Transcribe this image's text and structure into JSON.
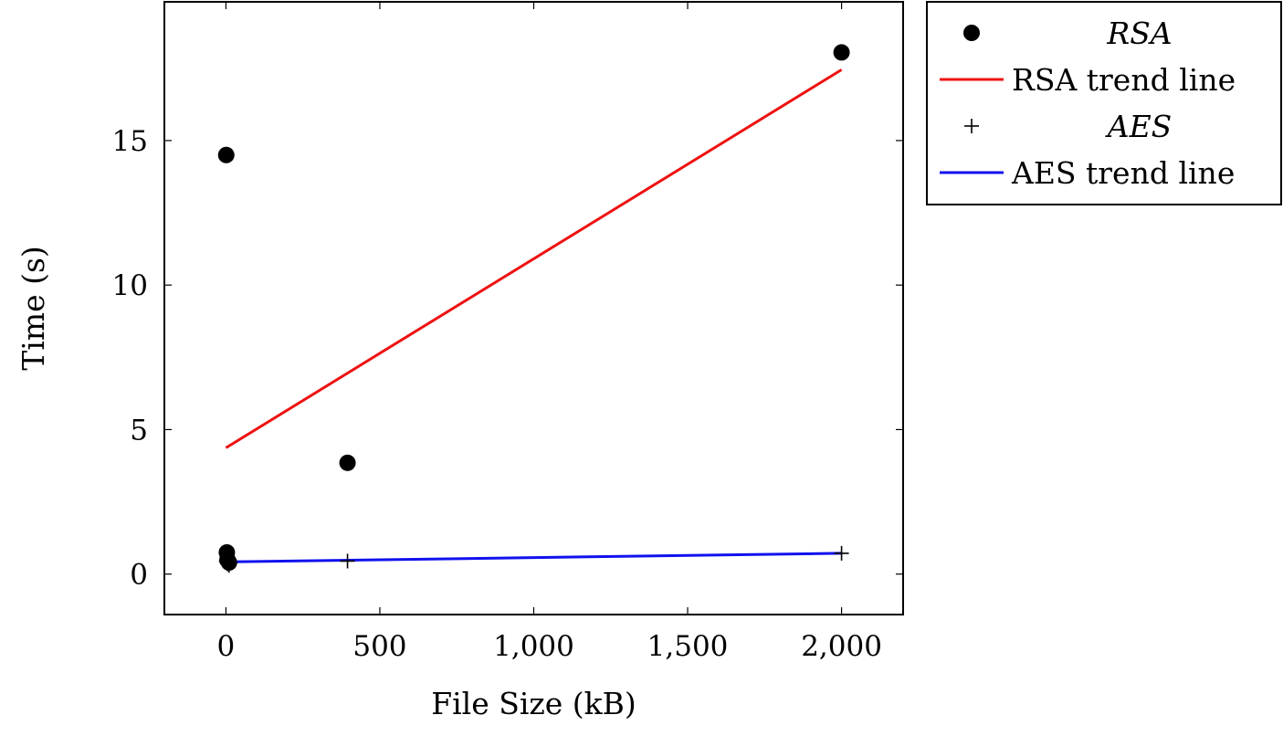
{
  "chart_data": {
    "type": "scatter",
    "xlabel": "File Size (kB)",
    "ylabel": "Time (s)",
    "xlim": [
      -200,
      2200
    ],
    "ylim": [
      -1.4,
      19.8
    ],
    "x_ticks": [
      0,
      500,
      1000,
      1500,
      2000
    ],
    "x_tick_labels": [
      "0",
      "500",
      "1,000",
      "1,500",
      "2,000"
    ],
    "y_ticks": [
      0,
      5,
      10,
      15
    ],
    "y_tick_labels": [
      "0",
      "5",
      "10",
      "15"
    ],
    "grid": false,
    "legend_position": "outside-top-right",
    "series": [
      {
        "name": "RSA",
        "kind": "scatter",
        "marker": "filled-circle",
        "color": "#000000",
        "x": [
          1,
          3,
          5,
          10,
          395,
          2000
        ],
        "y": [
          14.5,
          0.75,
          0.5,
          0.4,
          3.85,
          18.05
        ]
      },
      {
        "name": "RSA trend line",
        "kind": "line",
        "color": "#ee1111",
        "x": [
          0,
          2000
        ],
        "y": [
          4.37,
          17.45
        ]
      },
      {
        "name": "AES",
        "kind": "scatter",
        "marker": "plus",
        "color": "#000000",
        "x": [
          1,
          3,
          5,
          10,
          395,
          2000
        ],
        "y": [
          0.45,
          0.4,
          0.35,
          0.3,
          0.45,
          0.72
        ]
      },
      {
        "name": "AES trend line",
        "kind": "line",
        "color": "#1111ee",
        "x": [
          0,
          2000
        ],
        "y": [
          0.42,
          0.72
        ]
      }
    ]
  }
}
